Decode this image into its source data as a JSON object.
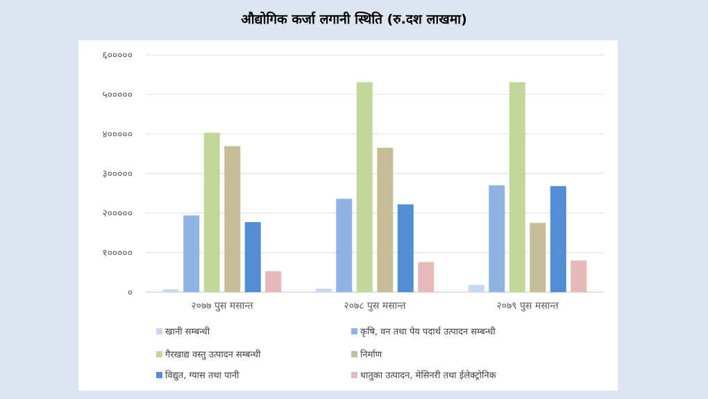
{
  "title": "औद्योगिक कर्जा लगानी स्थिति (रु.दश लाखमा)",
  "chart_data": {
    "type": "bar",
    "categories": [
      "२०७७ पुस मसान्त",
      "२०७८ पुस मसान्त",
      "२०७९ पुस मसान्त"
    ],
    "ylim": [
      0,
      600000
    ],
    "yticks": [
      "०",
      "१०००००",
      "२०००००",
      "३०००००",
      "४०००००",
      "५०००००",
      "६०००००"
    ],
    "grid": true,
    "legend_position": "bottom",
    "series": [
      {
        "name": "खानी सम्बन्धी",
        "color": "#c6d9f1",
        "values": [
          7000,
          9000,
          18000
        ]
      },
      {
        "name": "कृषि, वन तथा पेय पदार्थ उत्पादन सम्बन्धी",
        "color": "#8db4e2",
        "values": [
          194000,
          236000,
          270000
        ]
      },
      {
        "name": "गैरखाद्य वस्तु उत्पादन सम्बन्धी",
        "color": "#c4d79b",
        "values": [
          403000,
          531000,
          531000
        ]
      },
      {
        "name": "निर्माण",
        "color": "#c4bd97",
        "values": [
          369000,
          365000,
          175000
        ]
      },
      {
        "name": "विद्युत, ग्यास तथा पानी",
        "color": "#538dd5",
        "values": [
          177000,
          222000,
          268000
        ]
      },
      {
        "name": "धातुका उत्पादन, मेसिनरी तथा ईलेक्ट्रोनिक",
        "color": "#e6b9b8",
        "values": [
          53000,
          76000,
          80000
        ]
      }
    ]
  }
}
